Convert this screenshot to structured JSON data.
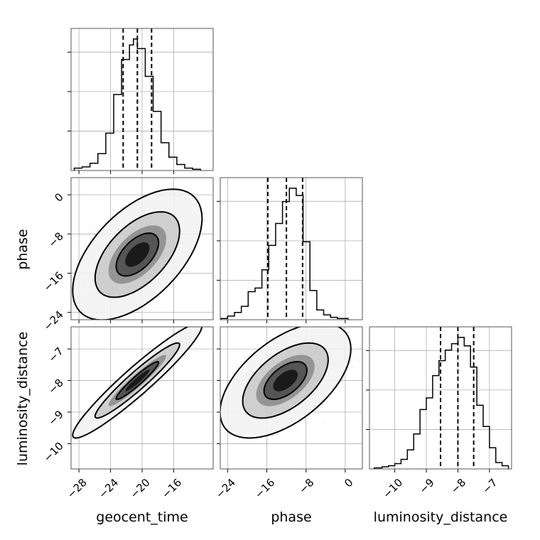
{
  "chart_data": {
    "type": "corner",
    "parameters": [
      "geocent_time",
      "phase",
      "luminosity_distance"
    ],
    "axis_labels": {
      "x": [
        "geocent_time",
        "phase",
        "luminosity_distance"
      ],
      "y": [
        "phase",
        "luminosity_distance"
      ]
    },
    "ranges": {
      "geocent_time": [
        -29,
        -11
      ],
      "phase": [
        -25.5,
        3.5
      ],
      "luminosity_distance": [
        -10.8,
        -6.3
      ]
    },
    "ticks": {
      "geocent_time": [
        -28,
        -24,
        -20,
        -16
      ],
      "phase": [
        -24,
        -16,
        -8,
        0
      ],
      "luminosity_distance": [
        -10,
        -9,
        -8,
        -7
      ]
    },
    "tick_labels": {
      "geocent_time": [
        "−28",
        "−24",
        "−20",
        "−16"
      ],
      "phase": [
        "−24",
        "−16",
        "−8",
        "0"
      ],
      "luminosity_distance": [
        "−10",
        "−9",
        "−8",
        "−7"
      ]
    },
    "marginal_histograms": {
      "geocent_time": {
        "bin_edges": [
          -28.6,
          -27.6,
          -26.6,
          -25.6,
          -24.6,
          -23.6,
          -22.6,
          -21.6,
          -21.1,
          -20.6,
          -19.6,
          -18.6,
          -17.6,
          -16.6,
          -15.6,
          -14.6,
          -13.6,
          -12.6
        ],
        "counts": [
          2,
          3,
          6,
          14,
          31,
          63,
          92,
          104,
          109,
          101,
          78,
          49,
          23,
          11,
          5,
          2,
          1
        ],
        "quantiles": [
          -22.4,
          -20.6,
          -18.8
        ]
      },
      "phase": {
        "bin_edges": [
          -25.4,
          -24.0,
          -22.6,
          -21.2,
          -19.8,
          -18.4,
          -17.0,
          -15.6,
          -14.2,
          -12.8,
          -11.4,
          -10.0,
          -8.6,
          -7.2,
          -5.8,
          -4.4,
          -3.0,
          -1.6,
          0.6
        ],
        "counts": [
          1,
          3,
          6,
          11,
          23,
          26,
          41,
          61,
          79,
          97,
          108,
          102,
          64,
          24,
          8,
          4,
          2,
          1
        ],
        "quantiles": [
          -15.8,
          -12.0,
          -8.7
        ]
      },
      "luminosity_distance": {
        "bin_edges": [
          -10.65,
          -10.4,
          -10.2,
          -10.0,
          -9.8,
          -9.6,
          -9.4,
          -9.2,
          -9.0,
          -8.8,
          -8.6,
          -8.4,
          -8.2,
          -8.0,
          -7.8,
          -7.6,
          -7.4,
          -7.2,
          -7.0,
          -6.8,
          -6.6,
          -6.4
        ],
        "counts": [
          1,
          2,
          3,
          5,
          9,
          18,
          33,
          56,
          67,
          88,
          102,
          112,
          118,
          124,
          116,
          96,
          60,
          40,
          20,
          6,
          3
        ],
        "quantiles": [
          -8.55,
          -8.0,
          -7.5
        ]
      }
    },
    "joint_distributions": [
      {
        "x": "geocent_time",
        "y": "phase",
        "center": [
          -20.6,
          -12.2
        ],
        "spread": [
          2.7,
          4.4
        ],
        "correlation": 0.55
      },
      {
        "x": "geocent_time",
        "y": "luminosity_distance",
        "center": [
          -20.6,
          -8.0
        ],
        "spread": [
          2.7,
          0.6
        ],
        "correlation": 0.95
      },
      {
        "x": "phase",
        "y": "luminosity_distance",
        "center": [
          -12.2,
          -8.0
        ],
        "spread": [
          4.4,
          0.6
        ],
        "correlation": 0.55
      }
    ],
    "contour_levels": [
      0.39,
      0.86,
      0.99
    ],
    "grid": true,
    "legend": "none"
  }
}
